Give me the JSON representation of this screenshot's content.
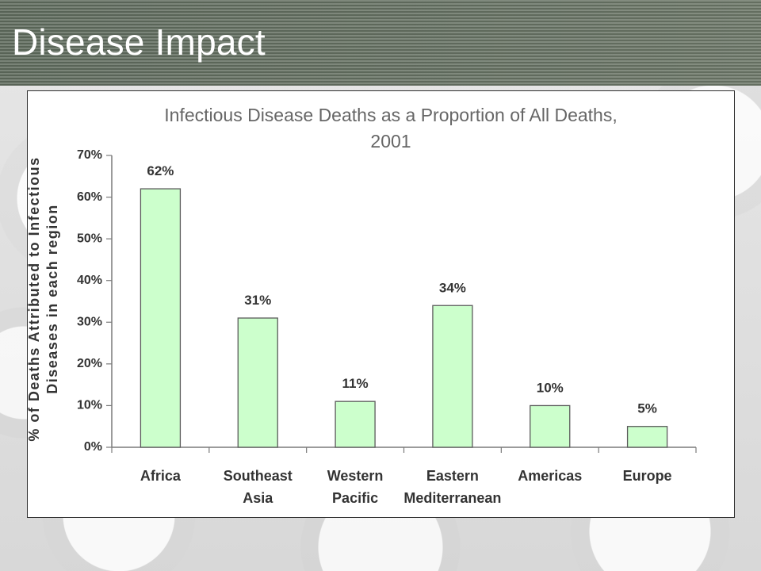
{
  "slide": {
    "title": "Disease Impact"
  },
  "theme": {
    "bar_fill": "#ccffcc",
    "bar_stroke": "#5b5b5b",
    "header_bg": "#66725f"
  },
  "chart_data": {
    "type": "bar",
    "title": [
      "Infectious Disease Deaths as a Proportion of All Deaths,",
      "2001"
    ],
    "xlabel": "",
    "ylabel": [
      "% of Deaths Attributed to Infectious",
      "Diseases in each region"
    ],
    "categories": [
      [
        "Africa"
      ],
      [
        "Southeast",
        "Asia"
      ],
      [
        "Western",
        "Pacific"
      ],
      [
        "Eastern",
        "Mediterranean"
      ],
      [
        "Americas"
      ],
      [
        "Europe"
      ]
    ],
    "values": [
      62,
      31,
      11,
      34,
      10,
      5
    ],
    "data_labels": [
      "62%",
      "31%",
      "11%",
      "34%",
      "10%",
      "5%"
    ],
    "yticks": [
      0,
      10,
      20,
      30,
      40,
      50,
      60,
      70
    ],
    "ytick_labels": [
      "0%",
      "10%",
      "20%",
      "30%",
      "40%",
      "50%",
      "60%",
      "70%"
    ],
    "ylim": [
      0,
      70
    ],
    "grid": false,
    "legend": "none"
  }
}
